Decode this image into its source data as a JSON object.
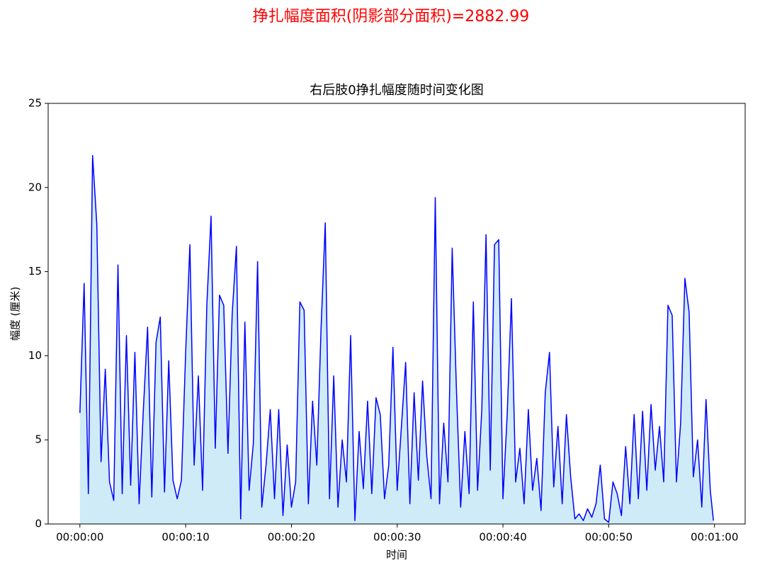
{
  "chart_data": {
    "type": "area-line",
    "suptitle": "挣扎幅度面积(阴影部分面积)=2882.99",
    "title": "右后肢0挣扎幅度随时间变化图",
    "xlabel": "时间",
    "ylabel": "幅度 (厘米)",
    "line_color": "#0000ff",
    "fill_color": "#87ceeb",
    "suptitle_color": "#ff0000",
    "xlim": [
      -3,
      62.9
    ],
    "ylim": [
      0,
      25
    ],
    "yticks": [
      0,
      5,
      10,
      15,
      20,
      25
    ],
    "xticks": [
      {
        "value": 0,
        "label": "00:00:00"
      },
      {
        "value": 10,
        "label": "00:00:10"
      },
      {
        "value": 20,
        "label": "00:00:20"
      },
      {
        "value": 30,
        "label": "00:00:30"
      },
      {
        "value": 40,
        "label": "00:00:40"
      },
      {
        "value": 50,
        "label": "00:00:50"
      },
      {
        "value": 60,
        "label": "00:01:00"
      }
    ],
    "x": [
      0,
      0.4,
      0.8,
      1.2,
      1.6,
      2,
      2.4,
      2.8,
      3.2,
      3.6,
      4,
      4.4,
      4.8,
      5.2,
      5.6,
      6,
      6.4,
      6.8,
      7.2,
      7.6,
      8,
      8.4,
      8.8,
      9.2,
      9.6,
      10,
      10.4,
      10.8,
      11.2,
      11.6,
      12,
      12.4,
      12.8,
      13.2,
      13.6,
      14,
      14.4,
      14.8,
      15.2,
      15.6,
      16,
      16.4,
      16.8,
      17.2,
      17.6,
      18,
      18.4,
      18.8,
      19.2,
      19.6,
      20,
      20.4,
      20.8,
      21.2,
      21.6,
      22,
      22.4,
      22.8,
      23.2,
      23.6,
      24,
      24.4,
      24.8,
      25.2,
      25.6,
      26,
      26.4,
      26.8,
      27.2,
      27.6,
      28,
      28.4,
      28.8,
      29.2,
      29.6,
      30,
      30.4,
      30.8,
      31.2,
      31.6,
      32,
      32.4,
      32.8,
      33.2,
      33.6,
      34,
      34.4,
      34.8,
      35.2,
      35.6,
      36,
      36.4,
      36.8,
      37.2,
      37.6,
      38,
      38.4,
      38.8,
      39.2,
      39.6,
      40,
      40.4,
      40.8,
      41.2,
      41.6,
      42,
      42.4,
      42.8,
      43.2,
      43.6,
      44,
      44.4,
      44.8,
      45.2,
      45.6,
      46,
      46.4,
      46.8,
      47.2,
      47.6,
      48,
      48.4,
      48.8,
      49.2,
      49.6,
      50,
      50.4,
      50.8,
      51.2,
      51.6,
      52,
      52.4,
      52.8,
      53.2,
      53.6,
      54,
      54.4,
      54.8,
      55.2,
      55.6,
      56,
      56.4,
      56.8,
      57.2,
      57.6,
      58,
      58.4,
      58.8,
      59.2,
      59.6,
      59.9
    ],
    "values": [
      6.6,
      14.3,
      1.8,
      21.9,
      17.8,
      3.7,
      9.2,
      2.5,
      1.4,
      15.4,
      1.8,
      11.2,
      2.3,
      10.2,
      1.2,
      6.8,
      11.7,
      1.6,
      10.8,
      12.3,
      1.9,
      9.7,
      2.6,
      1.5,
      2.6,
      10.2,
      16.6,
      3.5,
      8.8,
      2.0,
      13.0,
      18.3,
      4.5,
      13.6,
      13.0,
      4.2,
      12.5,
      16.5,
      0.3,
      12.0,
      2.0,
      4.8,
      15.6,
      1.0,
      3.5,
      6.8,
      1.5,
      6.8,
      0.5,
      4.7,
      1.0,
      2.5,
      13.2,
      12.7,
      1.2,
      7.3,
      3.5,
      11.6,
      17.9,
      1.5,
      8.8,
      1.0,
      5.0,
      2.5,
      11.2,
      0.2,
      5.5,
      2.1,
      7.3,
      1.8,
      7.5,
      6.5,
      1.5,
      3.5,
      10.5,
      2.0,
      5.8,
      9.6,
      1.2,
      7.8,
      2.6,
      8.5,
      4.0,
      1.5,
      19.4,
      1.2,
      6.0,
      2.5,
      16.4,
      8.0,
      1.0,
      5.5,
      1.8,
      13.2,
      2.0,
      6.8,
      17.2,
      3.2,
      16.6,
      16.9,
      1.5,
      6.5,
      13.4,
      2.5,
      4.5,
      1.2,
      6.8,
      2.0,
      3.9,
      0.8,
      7.8,
      10.2,
      2.2,
      5.8,
      1.2,
      6.5,
      2.8,
      0.3,
      0.6,
      0.2,
      0.9,
      0.4,
      1.2,
      3.5,
      0.3,
      0.1,
      2.5,
      1.8,
      0.5,
      4.6,
      1.2,
      6.5,
      1.5,
      6.7,
      2.0,
      7.1,
      3.2,
      5.8,
      2.5,
      13.0,
      12.4,
      2.5,
      6.0,
      14.6,
      12.6,
      2.8,
      5.0,
      1.0,
      7.4,
      2.0,
      0.2
    ]
  }
}
